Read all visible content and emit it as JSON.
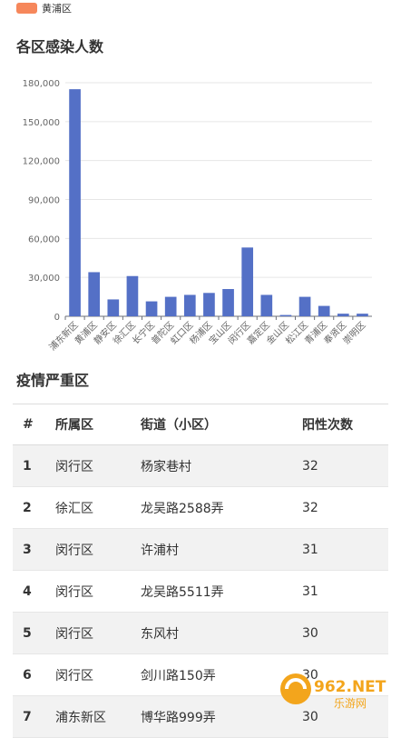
{
  "legend": {
    "label": "黄浦区",
    "color": "#f6875b"
  },
  "chart_title": "各区感染人数",
  "chart_data": {
    "type": "bar",
    "categories": [
      "浦东新区",
      "黄浦区",
      "静安区",
      "徐汇区",
      "长宁区",
      "普陀区",
      "虹口区",
      "杨浦区",
      "宝山区",
      "闵行区",
      "嘉定区",
      "金山区",
      "松江区",
      "青浦区",
      "奉贤区",
      "崇明区"
    ],
    "values": [
      175000,
      34000,
      13000,
      31000,
      11500,
      15000,
      16500,
      18000,
      21000,
      53000,
      16500,
      1000,
      15000,
      8000,
      2000,
      2000
    ],
    "ylim": [
      0,
      180000
    ],
    "yticks": [
      "0",
      "30,000",
      "60,000",
      "90,000",
      "120,000",
      "150,000",
      "180,000"
    ],
    "ytick_values": [
      0,
      30000,
      60000,
      90000,
      120000,
      150000,
      180000
    ],
    "bar_color": "#5470c6",
    "grid": true
  },
  "table_title": "疫情严重区",
  "table": {
    "headers": [
      "#",
      "所属区",
      "街道（小区）",
      "阳性次数"
    ],
    "rows": [
      [
        "1",
        "闵行区",
        "杨家巷村",
        "32"
      ],
      [
        "2",
        "徐汇区",
        "龙吴路2588弄",
        "32"
      ],
      [
        "3",
        "闵行区",
        "许浦村",
        "31"
      ],
      [
        "4",
        "闵行区",
        "龙吴路5511弄",
        "31"
      ],
      [
        "5",
        "闵行区",
        "东风村",
        "30"
      ],
      [
        "6",
        "闵行区",
        "剑川路150弄",
        "30"
      ],
      [
        "7",
        "浦东新区",
        "博华路999弄",
        "30"
      ]
    ]
  },
  "watermark": {
    "text": "962.NET",
    "subtext": "乐游网"
  }
}
